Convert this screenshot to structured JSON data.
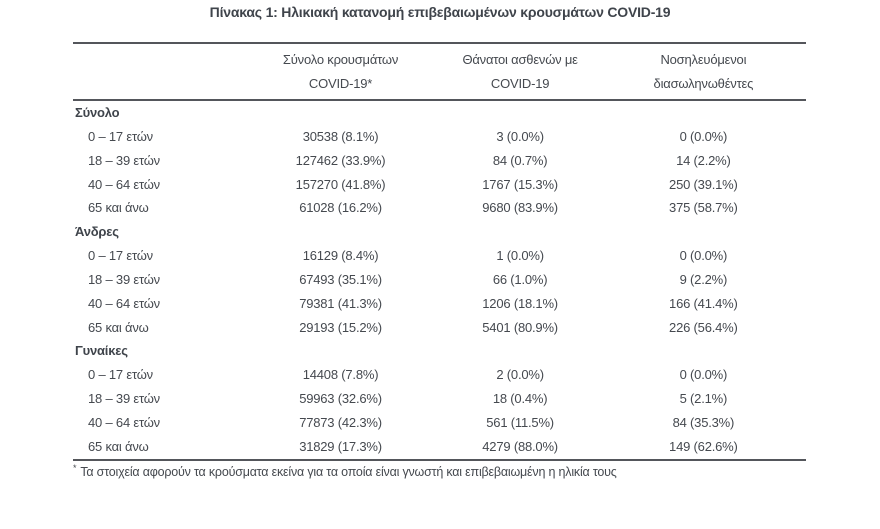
{
  "page": {
    "title": "Πίνακας 1: Ηλικιακή κατανομή επιβεβαιωμένων κρουσμάτων COVID-19",
    "footnote_marker": "*",
    "footnote": "Τα στοιχεία αφορούν τα κρούσματα εκείνα για τα οποία είναι γνωστή και επιβεβαιωμένη η ηλικία τους"
  },
  "colors": {
    "text": "#45494f",
    "heading_text": "#3f444b",
    "border": "#54565b",
    "background": "#ffffff"
  },
  "table": {
    "columns": [
      {
        "line1": "",
        "line2": ""
      },
      {
        "line1": "Σύνολο κρουσμάτων",
        "line2": "COVID-19*"
      },
      {
        "line1": "Θάνατοι ασθενών με",
        "line2": "COVID-19"
      },
      {
        "line1": "Νοσηλευόμενοι",
        "line2": "διασωληνωθέντες"
      }
    ],
    "sections": [
      {
        "label": "Σύνολο",
        "rows": [
          {
            "label": "0 – 17 ετών",
            "cases": "30538 (8.1%)",
            "deaths": "3 (0.0%)",
            "intubated": "0 (0.0%)"
          },
          {
            "label": "18 – 39 ετών",
            "cases": "127462 (33.9%)",
            "deaths": "84 (0.7%)",
            "intubated": "14 (2.2%)"
          },
          {
            "label": "40 – 64 ετών",
            "cases": "157270 (41.8%)",
            "deaths": "1767 (15.3%)",
            "intubated": "250 (39.1%)"
          },
          {
            "label": "65 και άνω",
            "cases": "61028 (16.2%)",
            "deaths": "9680 (83.9%)",
            "intubated": "375 (58.7%)"
          }
        ]
      },
      {
        "label": "Άνδρες",
        "rows": [
          {
            "label": "0 – 17 ετών",
            "cases": "16129 (8.4%)",
            "deaths": "1 (0.0%)",
            "intubated": "0 (0.0%)"
          },
          {
            "label": "18 – 39 ετών",
            "cases": "67493 (35.1%)",
            "deaths": "66 (1.0%)",
            "intubated": "9 (2.2%)"
          },
          {
            "label": "40 – 64 ετών",
            "cases": "79381 (41.3%)",
            "deaths": "1206 (18.1%)",
            "intubated": "166 (41.4%)"
          },
          {
            "label": "65 και άνω",
            "cases": "29193 (15.2%)",
            "deaths": "5401 (80.9%)",
            "intubated": "226 (56.4%)"
          }
        ]
      },
      {
        "label": "Γυναίκες",
        "rows": [
          {
            "label": "0 – 17 ετών",
            "cases": "14408 (7.8%)",
            "deaths": "2 (0.0%)",
            "intubated": "0 (0.0%)"
          },
          {
            "label": "18 – 39 ετών",
            "cases": "59963 (32.6%)",
            "deaths": "18 (0.4%)",
            "intubated": "5 (2.1%)"
          },
          {
            "label": "40 – 64 ετών",
            "cases": "77873 (42.3%)",
            "deaths": "561 (11.5%)",
            "intubated": "84 (35.3%)"
          },
          {
            "label": "65 και άνω",
            "cases": "31829 (17.3%)",
            "deaths": "4279 (88.0%)",
            "intubated": "149 (62.6%)"
          }
        ]
      }
    ]
  }
}
